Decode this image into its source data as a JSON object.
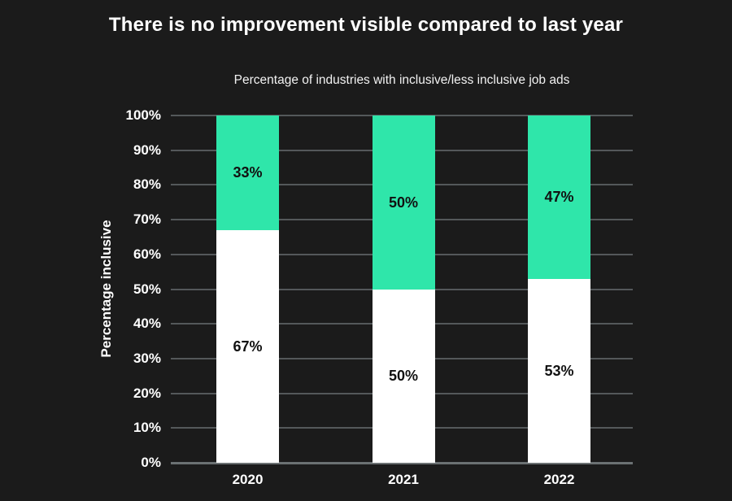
{
  "colors": {
    "background": "#1b1b1b",
    "inclusive_bar": "#ffffff",
    "less_inclusive_bar": "#2fe6aa",
    "gridline": "#54585a",
    "axis_line": "#6b7173",
    "text": "#ffffff",
    "bar_label_text": "#111111"
  },
  "chart_data": {
    "type": "bar",
    "stacked": true,
    "title": "There is no improvement visible compared to last year",
    "subtitle": "Percentage of industries with inclusive/less inclusive job ads",
    "xlabel": "",
    "ylabel": "Percentage inclusive",
    "ylim": [
      0,
      100
    ],
    "grid": true,
    "legend": false,
    "categories": [
      "2020",
      "2021",
      "2022"
    ],
    "series": [
      {
        "name": "inclusive",
        "color": "#ffffff",
        "values": [
          67,
          50,
          53
        ],
        "labels": [
          "67%",
          "50%",
          "53%"
        ]
      },
      {
        "name": "less inclusive",
        "color": "#2fe6aa",
        "values": [
          33,
          50,
          47
        ],
        "labels": [
          "33%",
          "50%",
          "47%"
        ]
      }
    ],
    "yticks": [
      {
        "value": 0,
        "label": "0%"
      },
      {
        "value": 10,
        "label": "10%"
      },
      {
        "value": 20,
        "label": "20%"
      },
      {
        "value": 30,
        "label": "30%"
      },
      {
        "value": 40,
        "label": "40%"
      },
      {
        "value": 50,
        "label": "50%"
      },
      {
        "value": 60,
        "label": "60%"
      },
      {
        "value": 70,
        "label": "70%"
      },
      {
        "value": 80,
        "label": "80%"
      },
      {
        "value": 90,
        "label": "90%"
      },
      {
        "value": 100,
        "label": "100%"
      }
    ]
  }
}
